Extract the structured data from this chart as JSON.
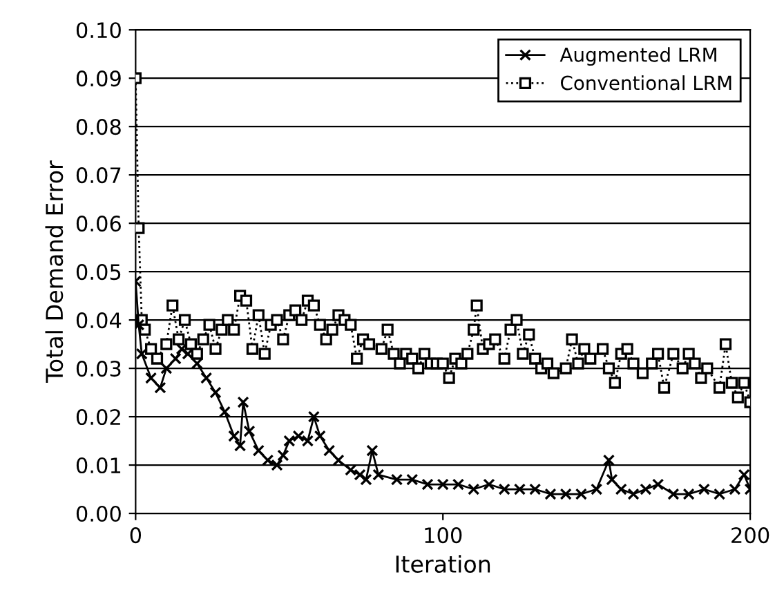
{
  "chart_data": {
    "type": "line",
    "xlabel": "Iteration",
    "ylabel": "Total Demand Error",
    "xlim": [
      0,
      200
    ],
    "xticks": [
      0,
      100,
      200
    ],
    "ylim": [
      0,
      0.1
    ],
    "yticks": [
      {
        "value": 0,
        "label": "0.00"
      },
      {
        "value": 0.01,
        "label": "0.01"
      },
      {
        "value": 0.02,
        "label": "0.02"
      },
      {
        "value": 0.03,
        "label": "0.03"
      },
      {
        "value": 0.04,
        "label": "0.04"
      },
      {
        "value": 0.05,
        "label": "0.05"
      },
      {
        "value": 0.06,
        "label": "0.06"
      },
      {
        "value": 0.07,
        "label": "0.07"
      },
      {
        "value": 0.08,
        "label": "0.08"
      },
      {
        "value": 0.09,
        "label": "0.09"
      },
      {
        "value": 0.1,
        "label": "0.10"
      }
    ],
    "grid": "y",
    "legend": "top right",
    "series": [
      {
        "name": "Augmented LRM",
        "color": "#000000",
        "marker": "cross",
        "line_style": "solid",
        "x": [
          0,
          1,
          2,
          5,
          8,
          10,
          13,
          15,
          17,
          20,
          23,
          26,
          29,
          32,
          34,
          35,
          37,
          40,
          43,
          46,
          48,
          50,
          53,
          56,
          58,
          60,
          63,
          66,
          70,
          73,
          75,
          77,
          79,
          85,
          90,
          95,
          100,
          105,
          110,
          115,
          120,
          125,
          130,
          135,
          140,
          145,
          150,
          154,
          155,
          158,
          162,
          166,
          170,
          175,
          180,
          185,
          190,
          195,
          198,
          200
        ],
        "values": [
          0.048,
          0.039,
          0.033,
          0.028,
          0.026,
          0.03,
          0.032,
          0.034,
          0.033,
          0.031,
          0.028,
          0.025,
          0.021,
          0.016,
          0.014,
          0.023,
          0.017,
          0.013,
          0.011,
          0.01,
          0.012,
          0.015,
          0.016,
          0.015,
          0.02,
          0.016,
          0.013,
          0.011,
          0.009,
          0.008,
          0.007,
          0.013,
          0.008,
          0.007,
          0.007,
          0.006,
          0.006,
          0.006,
          0.005,
          0.006,
          0.005,
          0.005,
          0.005,
          0.004,
          0.004,
          0.004,
          0.005,
          0.011,
          0.007,
          0.005,
          0.004,
          0.005,
          0.006,
          0.004,
          0.004,
          0.005,
          0.004,
          0.005,
          0.008,
          0.005
        ]
      },
      {
        "name": "Conventional LRM",
        "color": "#000000",
        "marker": "square",
        "line_style": "dotted",
        "x": [
          0,
          1,
          2,
          3,
          5,
          7,
          10,
          12,
          14,
          16,
          18,
          20,
          22,
          24,
          26,
          28,
          30,
          32,
          34,
          36,
          38,
          40,
          42,
          44,
          46,
          48,
          50,
          52,
          54,
          56,
          58,
          60,
          62,
          64,
          66,
          68,
          70,
          72,
          74,
          76,
          80,
          82,
          84,
          86,
          88,
          90,
          92,
          94,
          96,
          98,
          100,
          102,
          104,
          106,
          108,
          110,
          111,
          113,
          115,
          117,
          120,
          122,
          124,
          126,
          128,
          130,
          132,
          134,
          136,
          140,
          142,
          144,
          146,
          148,
          152,
          154,
          156,
          158,
          160,
          162,
          165,
          168,
          170,
          172,
          175,
          178,
          180,
          182,
          184,
          186,
          190,
          192,
          194,
          196,
          198,
          200
        ],
        "values": [
          0.09,
          0.059,
          0.04,
          0.038,
          0.034,
          0.032,
          0.035,
          0.043,
          0.036,
          0.04,
          0.035,
          0.033,
          0.036,
          0.039,
          0.034,
          0.038,
          0.04,
          0.038,
          0.045,
          0.044,
          0.034,
          0.041,
          0.033,
          0.039,
          0.04,
          0.036,
          0.041,
          0.042,
          0.04,
          0.044,
          0.043,
          0.039,
          0.036,
          0.038,
          0.041,
          0.04,
          0.039,
          0.032,
          0.036,
          0.035,
          0.034,
          0.038,
          0.033,
          0.031,
          0.033,
          0.032,
          0.03,
          0.033,
          0.031,
          0.031,
          0.031,
          0.028,
          0.032,
          0.031,
          0.033,
          0.038,
          0.043,
          0.034,
          0.035,
          0.036,
          0.032,
          0.038,
          0.04,
          0.033,
          0.037,
          0.032,
          0.03,
          0.031,
          0.029,
          0.03,
          0.036,
          0.031,
          0.034,
          0.032,
          0.034,
          0.03,
          0.027,
          0.033,
          0.034,
          0.031,
          0.029,
          0.031,
          0.033,
          0.026,
          0.033,
          0.03,
          0.033,
          0.031,
          0.028,
          0.03,
          0.026,
          0.035,
          0.027,
          0.024,
          0.027,
          0.023
        ]
      }
    ]
  }
}
